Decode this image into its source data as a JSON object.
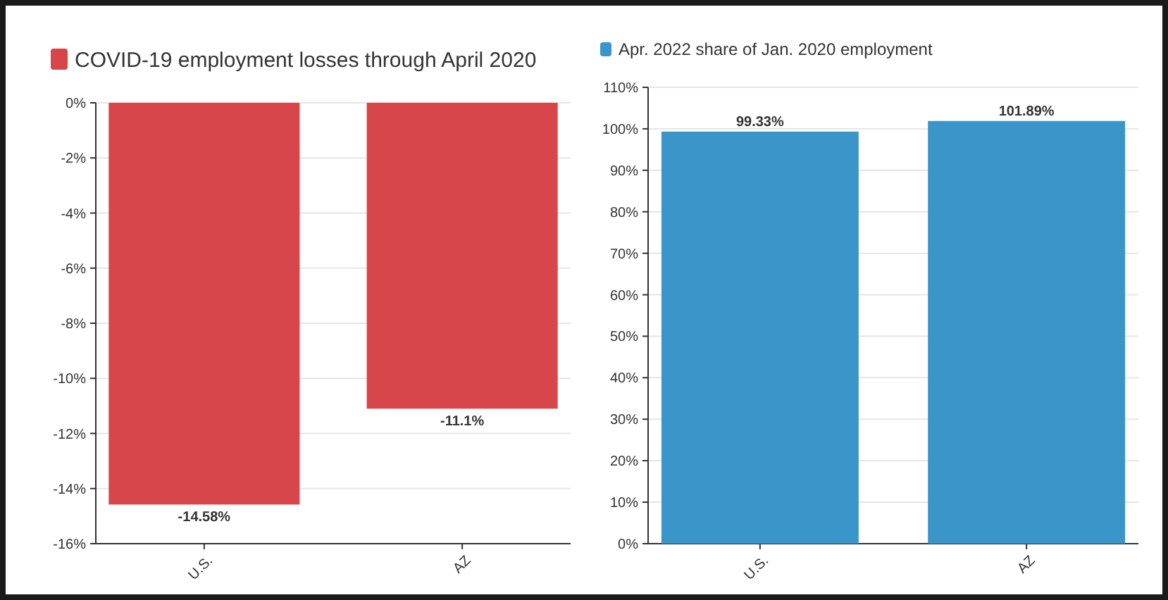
{
  "chart_data": [
    {
      "type": "bar",
      "categories": [
        "U.S.",
        "AZ"
      ],
      "series": [
        {
          "name": "COVID-19 employment losses through April 2020",
          "color": "#d6464b",
          "values": [
            -14.58,
            -11.1
          ],
          "value_labels": [
            "-14.58%",
            "-11.1%"
          ]
        }
      ],
      "ylim": [
        -16,
        0
      ],
      "yticks": [
        {
          "value": 0,
          "label": "0%"
        },
        {
          "value": -2,
          "label": "-2%"
        },
        {
          "value": -4,
          "label": "-4%"
        },
        {
          "value": -6,
          "label": "-6%"
        },
        {
          "value": -8,
          "label": "-8%"
        },
        {
          "value": -10,
          "label": "-10%"
        },
        {
          "value": -12,
          "label": "-12%"
        },
        {
          "value": -14,
          "label": "-14%"
        },
        {
          "value": -16,
          "label": "-16%"
        }
      ],
      "grid": "y",
      "legend": "top left"
    },
    {
      "type": "bar",
      "categories": [
        "U.S.",
        "AZ"
      ],
      "series": [
        {
          "name": "Apr. 2022 share of Jan. 2020 employment",
          "color": "#3a95c9",
          "values": [
            99.33,
            101.89
          ],
          "value_labels": [
            "99.33%",
            "101.89%"
          ]
        }
      ],
      "ylim": [
        0,
        110
      ],
      "yticks": [
        {
          "value": 0,
          "label": "0%"
        },
        {
          "value": 10,
          "label": "10%"
        },
        {
          "value": 20,
          "label": "20%"
        },
        {
          "value": 30,
          "label": "30%"
        },
        {
          "value": 40,
          "label": "40%"
        },
        {
          "value": 50,
          "label": "50%"
        },
        {
          "value": 60,
          "label": "60%"
        },
        {
          "value": 70,
          "label": "70%"
        },
        {
          "value": 80,
          "label": "80%"
        },
        {
          "value": 90,
          "label": "90%"
        },
        {
          "value": 100,
          "label": "100%"
        },
        {
          "value": 110,
          "label": "110%"
        }
      ],
      "grid": "y",
      "legend": "top left"
    }
  ]
}
